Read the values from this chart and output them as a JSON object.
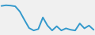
{
  "x": [
    0,
    1,
    2,
    3,
    4,
    5,
    6,
    7,
    8,
    9,
    10,
    11,
    12,
    13,
    14,
    15,
    16,
    17,
    18,
    19,
    20
  ],
  "y": [
    8.8,
    9.0,
    8.9,
    8.7,
    7.2,
    4.8,
    2.5,
    1.8,
    2.2,
    5.5,
    3.2,
    1.8,
    3.0,
    1.8,
    2.4,
    2.0,
    1.8,
    3.8,
    2.4,
    3.2,
    2.0
  ],
  "line_color": "#3399cc",
  "linewidth": 1.4,
  "background_color": "#f0f0f0"
}
